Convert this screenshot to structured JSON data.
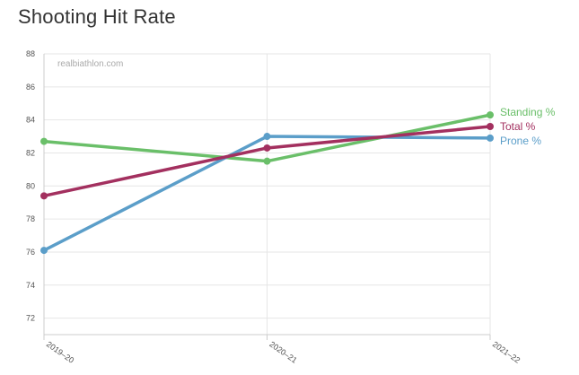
{
  "page": {
    "title": "Shooting Hit Rate",
    "watermark": "realbiathlon.com"
  },
  "chart_data": {
    "type": "line",
    "title": "Shooting Hit Rate",
    "xlabel": "",
    "ylabel": "",
    "categories": [
      "2019–20",
      "2020–21",
      "2021–22"
    ],
    "ylim": [
      71,
      88
    ],
    "yticks": [
      72,
      74,
      76,
      78,
      80,
      82,
      84,
      86,
      88
    ],
    "grid": true,
    "legend": "right end labels",
    "series": [
      {
        "name": "Standing %",
        "color": "#6abf69",
        "values": [
          82.7,
          81.5,
          84.3
        ]
      },
      {
        "name": "Total %",
        "color": "#a3305f",
        "values": [
          79.4,
          82.3,
          83.6
        ]
      },
      {
        "name": "Prone %",
        "color": "#5b9ec9",
        "values": [
          76.1,
          83.0,
          82.9
        ]
      }
    ]
  }
}
